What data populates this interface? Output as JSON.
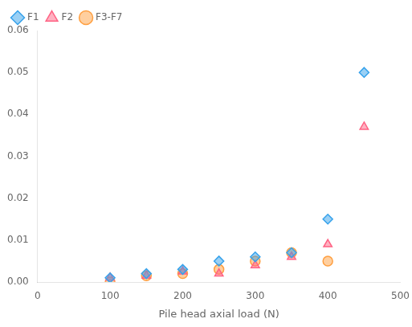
{
  "chart_data": {
    "type": "scatter",
    "xlabel": "Pile head axial load (N)",
    "series": [
      {
        "name": "F1",
        "marker": "diamond",
        "x": [
          100,
          150,
          200,
          250,
          300,
          350,
          400,
          450
        ],
        "values": [
          0.001,
          0.002,
          0.003,
          0.005,
          0.006,
          0.007,
          0.015,
          0.05
        ]
      },
      {
        "name": "F2",
        "marker": "triangle",
        "x": [
          100,
          150,
          200,
          250,
          300,
          350,
          400,
          450
        ],
        "values": [
          0.001,
          0.0015,
          0.0025,
          0.002,
          0.004,
          0.006,
          0.009,
          0.037
        ]
      },
      {
        "name": "F3-F7",
        "marker": "circle",
        "x": [
          100,
          150,
          200,
          250,
          300,
          350,
          400
        ],
        "values": [
          0.0,
          0.0015,
          0.002,
          0.003,
          0.005,
          0.007,
          0.005
        ]
      }
    ],
    "xlim": [
      0,
      500
    ],
    "xticks": [
      0,
      100,
      200,
      300,
      400,
      500
    ],
    "ylim": [
      0,
      0.06
    ],
    "yticks": [
      {
        "value": 0,
        "label": "0.00"
      },
      0.01,
      0.02,
      0.03,
      0.04,
      0.05,
      0.06
    ],
    "grid": false,
    "legend": "upper left"
  }
}
